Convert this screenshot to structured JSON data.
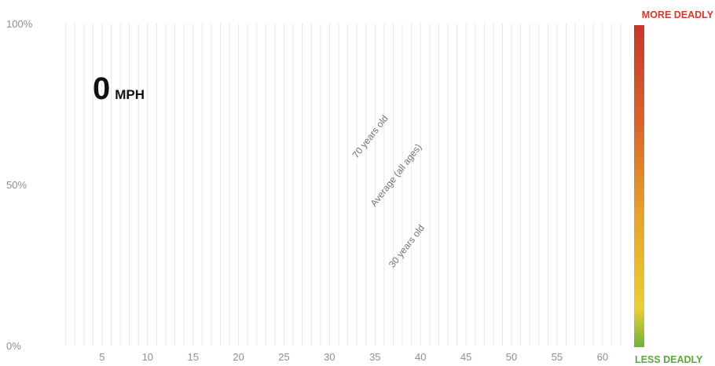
{
  "chart_data": {
    "type": "line",
    "title": "",
    "xlabel": "",
    "ylabel": "",
    "x_ticks": [
      5,
      10,
      15,
      20,
      25,
      30,
      35,
      40,
      45,
      50,
      55,
      60
    ],
    "xlim": [
      0,
      62
    ],
    "y_ticks": [
      "0%",
      "50%",
      "100%"
    ],
    "ylim": [
      0,
      100
    ],
    "grid": "vertical",
    "speed_readout": {
      "value": "0",
      "unit": "MPH"
    },
    "series": [
      {
        "name": "70 years old",
        "label_at": {
          "x": 33,
          "y": 58
        }
      },
      {
        "name": "Average (all ages)",
        "label_at": {
          "x": 35,
          "y": 43
        }
      },
      {
        "name": "30 years old",
        "label_at": {
          "x": 37,
          "y": 24
        }
      }
    ],
    "color_scale": {
      "top_label": "MORE DEADLY",
      "bottom_label": "LESS DEADLY",
      "colors": [
        "#c8372b",
        "#d8642c",
        "#e6a42e",
        "#e9cf35",
        "#6fb23c"
      ]
    }
  }
}
